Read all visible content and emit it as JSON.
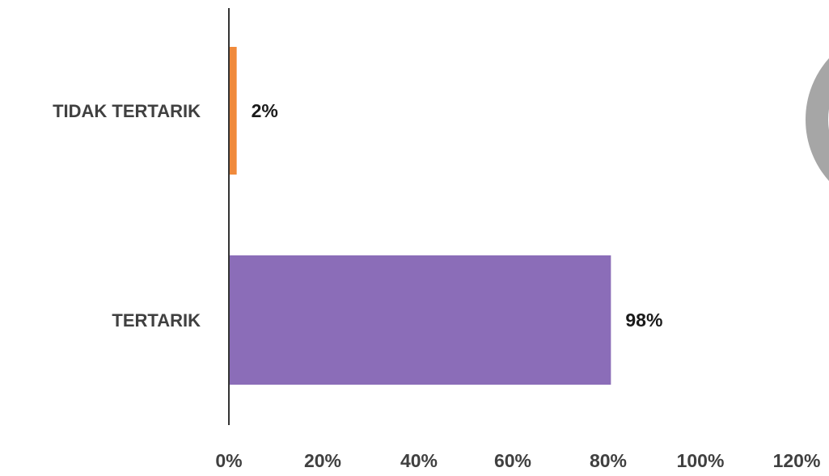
{
  "chart_data": {
    "type": "bar",
    "orientation": "horizontal",
    "categories": [
      "TIDAK TERTARIK",
      "TERTARIK"
    ],
    "values": [
      2,
      98
    ],
    "value_labels": [
      "2%",
      "98%"
    ],
    "colors": [
      "#F08A3C",
      "#8B6DB8"
    ],
    "x_ticks": [
      "0%",
      "20%",
      "40%",
      "60%",
      "80%",
      "100%",
      "120%"
    ],
    "x_tick_values": [
      0,
      20,
      40,
      60,
      80,
      100,
      120
    ],
    "xlim": [
      0,
      120
    ],
    "title": "",
    "xlabel": "",
    "ylabel": "",
    "grid": false,
    "legend": "none",
    "decoration_color": "#A6A6A6"
  }
}
